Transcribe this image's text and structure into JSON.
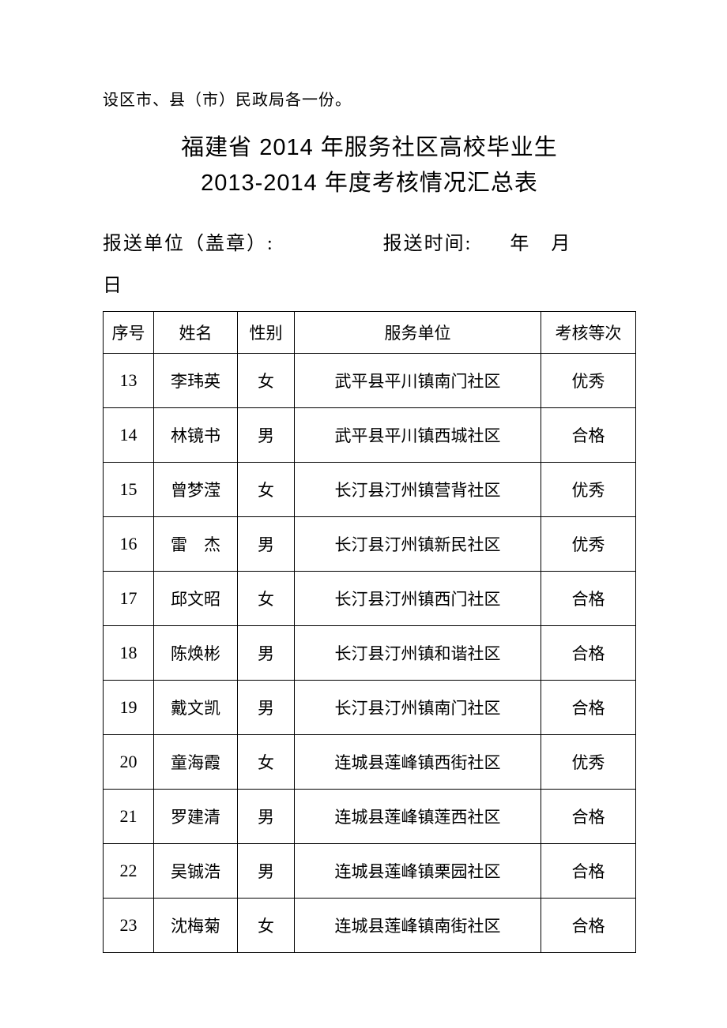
{
  "note": "设区市、县（市）民政局各一份。",
  "title_line1": "福建省 2014 年服务社区高校毕业生",
  "title_line2": "2013-2014 年度考核情况汇总表",
  "meta": {
    "unit_label": "报送单位（盖章）:",
    "time_label": "报送时间:",
    "time_value": "年 月",
    "time_day": "日"
  },
  "table": {
    "headers": {
      "seq": "序号",
      "name": "姓名",
      "sex": "性别",
      "unit": "服务单位",
      "grade": "考核等次"
    },
    "rows": [
      {
        "seq": "13",
        "name": "李玮英",
        "sex": "女",
        "unit": "武平县平川镇南门社区",
        "grade": "优秀"
      },
      {
        "seq": "14",
        "name": "林镜书",
        "sex": "男",
        "unit": "武平县平川镇西城社区",
        "grade": "合格"
      },
      {
        "seq": "15",
        "name": "曾梦滢",
        "sex": "女",
        "unit": "长汀县汀州镇营背社区",
        "grade": "优秀"
      },
      {
        "seq": "16",
        "name": "雷　杰",
        "sex": "男",
        "unit": "长汀县汀州镇新民社区",
        "grade": "优秀"
      },
      {
        "seq": "17",
        "name": "邱文昭",
        "sex": "女",
        "unit": "长汀县汀州镇西门社区",
        "grade": "合格"
      },
      {
        "seq": "18",
        "name": "陈焕彬",
        "sex": "男",
        "unit": "长汀县汀州镇和谐社区",
        "grade": "合格"
      },
      {
        "seq": "19",
        "name": "戴文凯",
        "sex": "男",
        "unit": "长汀县汀州镇南门社区",
        "grade": "合格"
      },
      {
        "seq": "20",
        "name": "童海霞",
        "sex": "女",
        "unit": "连城县莲峰镇西街社区",
        "grade": "优秀"
      },
      {
        "seq": "21",
        "name": "罗建清",
        "sex": "男",
        "unit": "连城县莲峰镇莲西社区",
        "grade": "合格"
      },
      {
        "seq": "22",
        "name": "吴铖浩",
        "sex": "男",
        "unit": "连城县莲峰镇栗园社区",
        "grade": "合格"
      },
      {
        "seq": "23",
        "name": "沈梅菊",
        "sex": "女",
        "unit": "连城县莲峰镇南街社区",
        "grade": "合格"
      }
    ]
  }
}
